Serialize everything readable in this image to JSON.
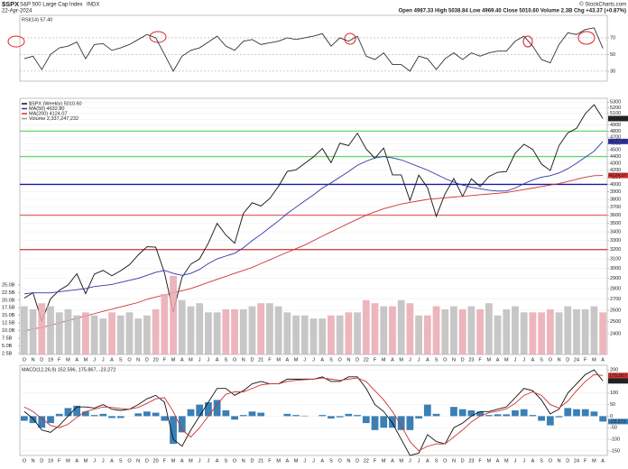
{
  "header": {
    "symbol": "$SPX",
    "name": "S&P 500 Large Cap Index",
    "exchange": "INDX",
    "date": "22-Apr-2024",
    "source": "© StockCharts.com",
    "quote": "Open 4987.33  High 5038.84  Low 4969.40  Close 5010.60  Volume 2.3B  Chg +43.37 (+0.87%)"
  },
  "chart_data": [
    {
      "type": "line",
      "title": "RSI(14) 57.40",
      "ylim": [
        18,
        97
      ],
      "yticks": [
        30,
        50,
        70
      ],
      "grid": true,
      "series": [
        {
          "color": "#333333",
          "values": [
            45,
            48,
            32,
            50,
            58,
            60,
            65,
            45,
            62,
            63,
            55,
            58,
            62,
            68,
            74,
            70,
            50,
            30,
            48,
            55,
            58,
            65,
            72,
            60,
            55,
            66,
            68,
            62,
            64,
            66,
            70,
            68,
            70,
            72,
            75,
            60,
            70,
            66,
            72,
            48,
            44,
            52,
            38,
            38,
            30,
            48,
            45,
            32,
            45,
            52,
            44,
            52,
            48,
            52,
            54,
            54,
            66,
            72,
            60,
            44,
            40,
            62,
            76,
            74,
            80,
            82,
            57.4
          ]
        }
      ]
    },
    {
      "type": "line",
      "log": true,
      "ylim": [
        2235,
        5370
      ],
      "grid": true,
      "yticks": [
        2400,
        2500,
        2600,
        2700,
        2800,
        2900,
        3000,
        3100,
        3200,
        3300,
        3400,
        3500,
        3600,
        3700,
        3800,
        3900,
        4000,
        4100,
        4200,
        4300,
        4400,
        4500,
        4600,
        4700,
        4800,
        4900,
        5000,
        5100,
        5200,
        5300
      ],
      "categories": [
        "O",
        "N",
        "D",
        "19",
        "F",
        "M",
        "A",
        "M",
        "J",
        "J",
        "A",
        "S",
        "O",
        "N",
        "D",
        "20",
        "F",
        "M",
        "A",
        "M",
        "J",
        "J",
        "A",
        "S",
        "O",
        "N",
        "D",
        "21",
        "F",
        "M",
        "A",
        "M",
        "J",
        "J",
        "A",
        "S",
        "O",
        "N",
        "D",
        "22",
        "F",
        "M",
        "A",
        "M",
        "J",
        "J",
        "A",
        "S",
        "O",
        "N",
        "D",
        "23",
        "F",
        "M",
        "A",
        "M",
        "J",
        "J",
        "A",
        "S",
        "O",
        "N",
        "D",
        "24",
        "F",
        "M",
        "A"
      ],
      "hlines": [
        {
          "value": 4800,
          "color": "#66d966"
        },
        {
          "value": 4400,
          "color": "#66d966"
        },
        {
          "value": 4000,
          "color": "#1a1aa6"
        },
        {
          "value": 3600,
          "color": "#e07070"
        },
        {
          "value": 3200,
          "color": "#d03030"
        }
      ],
      "axis_boxes": [
        {
          "value": 5010.6,
          "label": "5010.60",
          "color": "#222222"
        },
        {
          "value": 4632.8,
          "label": "4632.80",
          "color": "#3333aa"
        },
        {
          "value": 4124.07,
          "label": "4124.07",
          "color": "#cc3333"
        }
      ],
      "series": [
        {
          "name": "$SPX (Weekly) 5010.60",
          "color": "#111111",
          "values": [
            2711,
            2760,
            2507,
            2704,
            2784,
            2834,
            2946,
            2752,
            2942,
            2980,
            2926,
            2977,
            3038,
            3141,
            3231,
            3226,
            2954,
            2585,
            2912,
            3044,
            3100,
            3271,
            3500,
            3363,
            3270,
            3622,
            3756,
            3714,
            3811,
            3973,
            4181,
            4204,
            4298,
            4395,
            4523,
            4308,
            4605,
            4567,
            4766,
            4516,
            4374,
            4530,
            4132,
            4132,
            3785,
            4130,
            3955,
            3586,
            3872,
            4080,
            3840,
            4077,
            3970,
            4109,
            4169,
            4180,
            4450,
            4589,
            4508,
            4288,
            4194,
            4568,
            4770,
            4846,
            5096,
            5254,
            5010.6
          ]
        },
        {
          "name": "MA(50) 4632.80",
          "color": "#3333aa",
          "values": [
            2750,
            2760,
            2760,
            2760,
            2770,
            2780,
            2790,
            2800,
            2820,
            2830,
            2840,
            2860,
            2880,
            2900,
            2930,
            2960,
            2980,
            2950,
            2930,
            2950,
            2990,
            3050,
            3100,
            3130,
            3160,
            3220,
            3300,
            3370,
            3450,
            3530,
            3620,
            3700,
            3780,
            3860,
            3950,
            4020,
            4100,
            4180,
            4270,
            4330,
            4380,
            4400,
            4380,
            4350,
            4300,
            4250,
            4200,
            4140,
            4080,
            4030,
            3990,
            3960,
            3940,
            3920,
            3910,
            3910,
            3950,
            4010,
            4060,
            4100,
            4120,
            4160,
            4220,
            4300,
            4390,
            4480,
            4632.8
          ]
        },
        {
          "name": "MA(200) 4124.07",
          "color": "#cc3333",
          "values": [
            2420,
            2440,
            2450,
            2470,
            2490,
            2510,
            2530,
            2550,
            2570,
            2590,
            2610,
            2630,
            2650,
            2670,
            2700,
            2720,
            2740,
            2760,
            2780,
            2800,
            2830,
            2860,
            2890,
            2920,
            2950,
            2980,
            3010,
            3050,
            3090,
            3130,
            3170,
            3210,
            3250,
            3300,
            3350,
            3400,
            3450,
            3500,
            3550,
            3600,
            3640,
            3680,
            3710,
            3740,
            3760,
            3780,
            3800,
            3810,
            3820,
            3830,
            3840,
            3850,
            3860,
            3870,
            3880,
            3890,
            3910,
            3930,
            3950,
            3970,
            3990,
            4010,
            4040,
            4070,
            4100,
            4120,
            4124.07
          ]
        }
      ]
    },
    {
      "type": "bar",
      "ylim": [
        2.2,
        30
      ],
      "up_color": "#bdbdbd",
      "down_color": "#eaa8b0",
      "yticks": [
        {
          "value": 2.5,
          "label": "2.5B"
        },
        {
          "value": 5,
          "label": "5.0B"
        },
        {
          "value": 7.5,
          "label": "7.5B"
        },
        {
          "value": 10,
          "label": "10.0B"
        },
        {
          "value": 12.5,
          "label": "12.5B"
        },
        {
          "value": 15,
          "label": "15.0B"
        },
        {
          "value": 17.5,
          "label": "17.5B"
        },
        {
          "value": 20,
          "label": "20.0B"
        },
        {
          "value": 22.5,
          "label": "22.5B"
        },
        {
          "value": 25,
          "label": "25.0B"
        }
      ],
      "series": [
        {
          "name": "Volume 2,337,247,232",
          "color": "#999999",
          "values": [
            18,
            17,
            19,
            18,
            16,
            17,
            15,
            16,
            15,
            14,
            16,
            15,
            16,
            14,
            15,
            17,
            22,
            28,
            20,
            18,
            19,
            16,
            16,
            17,
            17,
            17,
            18,
            19,
            19,
            18,
            16,
            15,
            15,
            14,
            14,
            15,
            15,
            16,
            16,
            20,
            19,
            18,
            18,
            20,
            19,
            15,
            15,
            18,
            17,
            18,
            17,
            18,
            17,
            19,
            15,
            17,
            18,
            16,
            16,
            16,
            17,
            16,
            18,
            17,
            17,
            18,
            16
          ]
        }
      ]
    },
    {
      "type": "line",
      "title": "MACD(12,26,9) 152.596, 175.867, -23.272",
      "ylim": [
        -170,
        220
      ],
      "grid": true,
      "yticks": [
        200,
        150,
        100,
        50,
        0,
        -50,
        -100,
        -150
      ],
      "categories": [
        "O",
        "N",
        "D",
        "19",
        "F",
        "M",
        "A",
        "M",
        "J",
        "J",
        "A",
        "S",
        "O",
        "N",
        "D",
        "20",
        "F",
        "M",
        "A",
        "M",
        "J",
        "J",
        "A",
        "S",
        "O",
        "N",
        "D",
        "21",
        "F",
        "M",
        "A",
        "M",
        "J",
        "J",
        "A",
        "S",
        "O",
        "N",
        "D",
        "22",
        "F",
        "M",
        "A",
        "M",
        "J",
        "J",
        "A",
        "S",
        "O",
        "N",
        "D",
        "23",
        "F",
        "M",
        "A",
        "M",
        "J",
        "J",
        "A",
        "S",
        "O",
        "N",
        "D",
        "24",
        "F",
        "M",
        "A"
      ],
      "axis_boxes": [
        {
          "value": 175.867,
          "label": "175.867",
          "color": "#cc3333"
        },
        {
          "value": 152.596,
          "label": "152.596",
          "color": "#222222"
        },
        {
          "value": -23.272,
          "label": "-23.272",
          "color": "#3a7fb5"
        }
      ],
      "series": [
        {
          "style": "histogram",
          "color": "#3a7fb5",
          "values": [
            -20,
            -30,
            -50,
            -30,
            10,
            35,
            45,
            20,
            5,
            10,
            -8,
            -8,
            0,
            12,
            20,
            15,
            -20,
            -120,
            -70,
            30,
            50,
            60,
            70,
            25,
            -15,
            5,
            20,
            15,
            0,
            0,
            10,
            5,
            2,
            0,
            5,
            -10,
            -5,
            10,
            5,
            -30,
            -60,
            -50,
            -50,
            -60,
            -60,
            -10,
            50,
            10,
            0,
            40,
            30,
            25,
            20,
            5,
            8,
            8,
            25,
            30,
            5,
            -20,
            -40,
            -5,
            35,
            30,
            30,
            20,
            -23.272
          ]
        },
        {
          "color": "#111111",
          "values": [
            20,
            -10,
            -60,
            -70,
            -40,
            0,
            40,
            40,
            35,
            50,
            30,
            25,
            30,
            50,
            75,
            90,
            60,
            -100,
            -130,
            -60,
            0,
            60,
            120,
            120,
            90,
            110,
            140,
            150,
            140,
            140,
            160,
            160,
            160,
            160,
            170,
            150,
            150,
            170,
            170,
            120,
            50,
            20,
            -30,
            -100,
            -170,
            -160,
            -80,
            -110,
            -120,
            -50,
            -30,
            0,
            20,
            20,
            30,
            40,
            80,
            120,
            110,
            70,
            10,
            30,
            100,
            140,
            180,
            200,
            152.596
          ]
        },
        {
          "color": "#cc3333",
          "values": [
            40,
            20,
            -10,
            -40,
            -50,
            -35,
            -5,
            20,
            30,
            40,
            38,
            33,
            30,
            38,
            55,
            75,
            80,
            20,
            -60,
            -90,
            -50,
            0,
            50,
            95,
            105,
            105,
            120,
            135,
            140,
            140,
            150,
            155,
            158,
            160,
            165,
            160,
            155,
            160,
            165,
            150,
            110,
            70,
            20,
            -40,
            -110,
            -150,
            -130,
            -120,
            -120,
            -90,
            -60,
            -25,
            0,
            15,
            22,
            32,
            55,
            90,
            105,
            90,
            50,
            35,
            65,
            110,
            150,
            180,
            175.867
          ]
        }
      ]
    }
  ]
}
